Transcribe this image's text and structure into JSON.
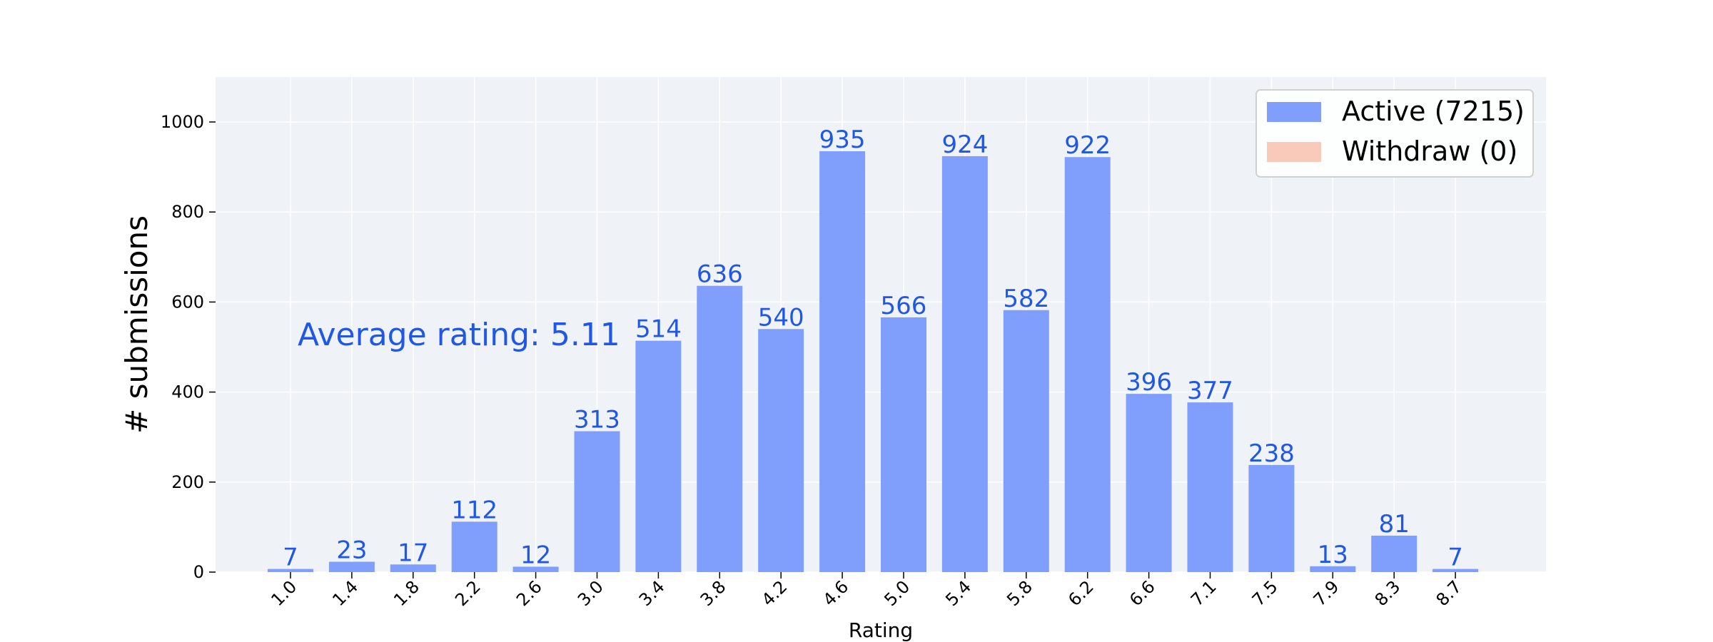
{
  "chart_data": {
    "type": "bar",
    "categories": [
      "1.0",
      "1.4",
      "1.8",
      "2.2",
      "2.6",
      "3.0",
      "3.4",
      "3.8",
      "4.2",
      "4.6",
      "5.0",
      "5.4",
      "5.8",
      "6.2",
      "6.6",
      "7.1",
      "7.5",
      "7.9",
      "8.3",
      "8.7"
    ],
    "series": [
      {
        "name": "Active",
        "legend_label": "Active (7215)",
        "color": "#809ffc",
        "values": [
          7,
          23,
          17,
          112,
          12,
          313,
          514,
          636,
          540,
          935,
          566,
          924,
          582,
          922,
          396,
          377,
          238,
          13,
          81,
          7
        ]
      },
      {
        "name": "Withdraw",
        "legend_label": "Withdraw (0)",
        "color": "#f9c9b9",
        "values": [
          0,
          0,
          0,
          0,
          0,
          0,
          0,
          0,
          0,
          0,
          0,
          0,
          0,
          0,
          0,
          0,
          0,
          0,
          0,
          0
        ]
      }
    ],
    "data_labels": [
      "7",
      "23",
      "17",
      "112",
      "12",
      "313",
      "514",
      "636",
      "540",
      "935",
      "566",
      "924",
      "582",
      "922",
      "396",
      "377",
      "238",
      "13",
      "81",
      "7"
    ],
    "annotation": "Average rating: 5.11",
    "xlabel": "Rating",
    "ylabel": "# submissions",
    "ylim": [
      0,
      1100
    ],
    "yticks": [
      0,
      200,
      400,
      600,
      800,
      1000
    ],
    "ytick_labels": [
      "0",
      "200",
      "400",
      "600",
      "800",
      "1000"
    ],
    "grid": true,
    "legend_position": "top-right",
    "colors": {
      "background": "#eff3f8",
      "grid": "#ffffff",
      "label_text": "#2057e6",
      "axis_text": "#000000"
    }
  }
}
